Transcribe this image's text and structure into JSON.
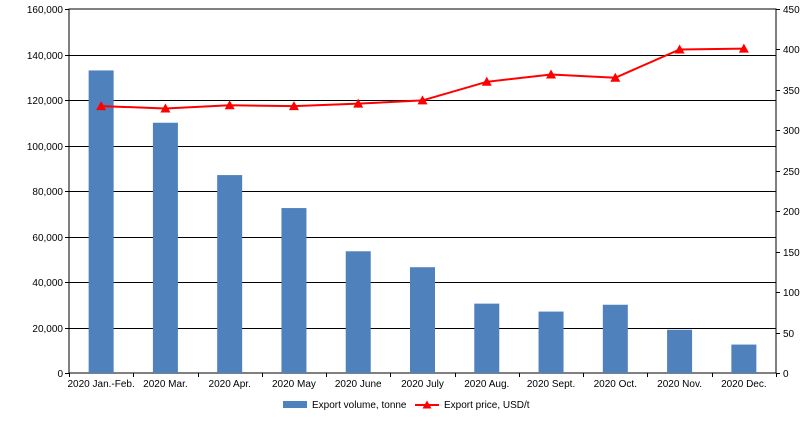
{
  "chart_data": {
    "type": "bar+line",
    "categories": [
      "2020 Jan.-Feb.",
      "2020 Mar.",
      "2020 Apr.",
      "2020 May",
      "2020 June",
      "2020 July",
      "2020 Aug.",
      "2020 Sept.",
      "2020 Oct.",
      "2020 Nov.",
      "2020 Dec."
    ],
    "series": [
      {
        "name": "Export volume, tonne",
        "type": "bar",
        "axis": "left",
        "color": "#4f81bd",
        "values": [
          133000,
          110000,
          87000,
          72500,
          53500,
          46500,
          30500,
          27000,
          30000,
          19000,
          12500
        ]
      },
      {
        "name": "Export price, USD/t",
        "type": "line",
        "axis": "right",
        "color": "#ff0000",
        "marker": "triangle",
        "values": [
          330,
          327,
          331,
          330,
          333,
          337,
          360,
          369,
          365,
          400,
          401
        ]
      }
    ],
    "y_left": {
      "ylim": [
        0,
        160000
      ],
      "ticks": [
        0,
        20000,
        40000,
        60000,
        80000,
        100000,
        120000,
        140000,
        160000
      ],
      "tick_labels": [
        "0",
        "20,000",
        "40,000",
        "60,000",
        "80,000",
        "100,000",
        "120,000",
        "140,000",
        "160,000"
      ]
    },
    "y_right": {
      "ylim": [
        0,
        450
      ],
      "ticks": [
        0,
        50,
        100,
        150,
        200,
        250,
        300,
        350,
        400,
        450
      ],
      "tick_labels": [
        "0",
        "50",
        "100",
        "150",
        "200",
        "250",
        "300",
        "350",
        "400",
        "450"
      ]
    },
    "grid": true,
    "legend_position": "bottom"
  }
}
